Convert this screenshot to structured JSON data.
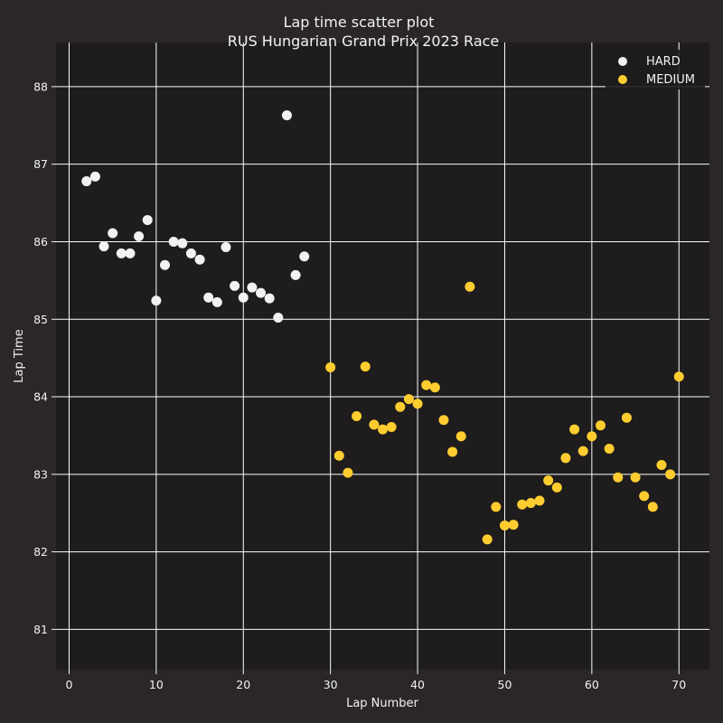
{
  "chart_data": {
    "type": "scatter",
    "title": "Lap time scatter plot",
    "subtitle": "RUS Hungarian Grand Prix 2023 Race",
    "xlabel": "Lap Number",
    "ylabel": "Lap Time",
    "xlim": [
      -1.5,
      73.5
    ],
    "ylim": [
      80.48,
      88.57
    ],
    "x_ticks": [
      0,
      10,
      20,
      30,
      40,
      50,
      60,
      70
    ],
    "y_ticks": [
      81,
      82,
      83,
      84,
      85,
      86,
      87,
      88
    ],
    "grid": true,
    "legend_position": "top-right",
    "colors": {
      "background": "#2b2727",
      "plot_background": "#1e1c1c",
      "grid": "#ffffff",
      "text": "#f2f2f2"
    },
    "series": [
      {
        "name": "HARD",
        "color": "#f2f2f2",
        "points": [
          [
            2,
            86.78
          ],
          [
            3,
            86.84
          ],
          [
            4,
            85.94
          ],
          [
            5,
            86.11
          ],
          [
            6,
            85.85
          ],
          [
            7,
            85.85
          ],
          [
            8,
            86.07
          ],
          [
            9,
            86.28
          ],
          [
            10,
            85.24
          ],
          [
            11,
            85.7
          ],
          [
            12,
            86.0
          ],
          [
            13,
            85.98
          ],
          [
            14,
            85.85
          ],
          [
            15,
            85.77
          ],
          [
            16,
            85.28
          ],
          [
            17,
            85.22
          ],
          [
            18,
            85.93
          ],
          [
            19,
            85.43
          ],
          [
            20,
            85.28
          ],
          [
            21,
            85.41
          ],
          [
            22,
            85.34
          ],
          [
            23,
            85.27
          ],
          [
            24,
            85.02
          ],
          [
            25,
            87.63
          ],
          [
            26,
            85.57
          ],
          [
            27,
            85.81
          ]
        ]
      },
      {
        "name": "MEDIUM",
        "color": "#ffcd30",
        "points": [
          [
            30,
            84.38
          ],
          [
            31,
            83.24
          ],
          [
            32,
            83.02
          ],
          [
            33,
            83.75
          ],
          [
            34,
            84.39
          ],
          [
            35,
            83.64
          ],
          [
            36,
            83.58
          ],
          [
            37,
            83.61
          ],
          [
            38,
            83.87
          ],
          [
            39,
            83.97
          ],
          [
            40,
            83.91
          ],
          [
            41,
            84.15
          ],
          [
            42,
            84.12
          ],
          [
            43,
            83.7
          ],
          [
            44,
            83.29
          ],
          [
            45,
            83.49
          ],
          [
            46,
            85.42
          ],
          [
            48,
            82.16
          ],
          [
            49,
            82.58
          ],
          [
            50,
            82.34
          ],
          [
            51,
            82.35
          ],
          [
            52,
            82.61
          ],
          [
            53,
            82.63
          ],
          [
            54,
            82.66
          ],
          [
            55,
            82.92
          ],
          [
            56,
            82.83
          ],
          [
            57,
            83.21
          ],
          [
            58,
            83.58
          ],
          [
            59,
            83.3
          ],
          [
            60,
            83.49
          ],
          [
            61,
            83.63
          ],
          [
            62,
            83.33
          ],
          [
            63,
            82.96
          ],
          [
            64,
            83.73
          ],
          [
            65,
            82.96
          ],
          [
            66,
            82.72
          ],
          [
            67,
            82.58
          ],
          [
            68,
            83.12
          ],
          [
            69,
            83.0
          ],
          [
            70,
            84.26
          ]
        ]
      }
    ]
  }
}
